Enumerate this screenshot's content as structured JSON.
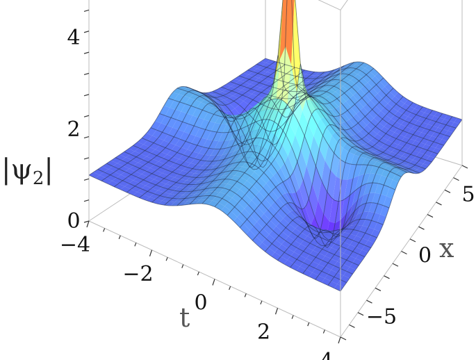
{
  "chart_data": {
    "type": "surface3d",
    "title": "",
    "z_axis": {
      "label_main": "|ψ",
      "label_sub": "2",
      "label_close": "|",
      "ticks": [
        {
          "value": 0,
          "label": "0"
        },
        {
          "value": 2,
          "label": "2"
        },
        {
          "value": 4,
          "label": "4"
        }
      ],
      "range": [
        0,
        4.6
      ]
    },
    "t_axis": {
      "label": "t",
      "ticks": [
        {
          "value": -4,
          "label": "−4"
        },
        {
          "value": -2,
          "label": "−2"
        },
        {
          "value": 0,
          "label": "0"
        },
        {
          "value": 2,
          "label": "2"
        },
        {
          "value": 4,
          "label": "4"
        }
      ],
      "range": [
        -4,
        4
      ]
    },
    "x_axis": {
      "label": "x",
      "ticks": [
        {
          "value": -5,
          "label": "−5"
        },
        {
          "value": 0,
          "label": "0"
        },
        {
          "value": 5,
          "label": "5"
        }
      ],
      "range": [
        -7,
        7
      ]
    },
    "surface": {
      "background_level": 1.0,
      "peak": {
        "t": 0,
        "x": 0,
        "value": 4.5
      },
      "ridges": [
        {
          "direction": "along t",
          "amplitude": 0.8
        },
        {
          "direction": "along x",
          "amplitude": 0.8
        }
      ],
      "troughs": [
        {
          "t": -1.8,
          "x": 1.5,
          "value": 0.2
        },
        {
          "t": 1.8,
          "x": -1.5,
          "value": 0.2
        }
      ]
    },
    "colors": {
      "low": "#5a1fd8",
      "base": "#5a6cf0",
      "mid": "#5fd8e8",
      "high_mid": "#d8e85a",
      "peak": "#e0482a",
      "mesh": "#1a2540",
      "box": "#bbbbbb"
    }
  }
}
